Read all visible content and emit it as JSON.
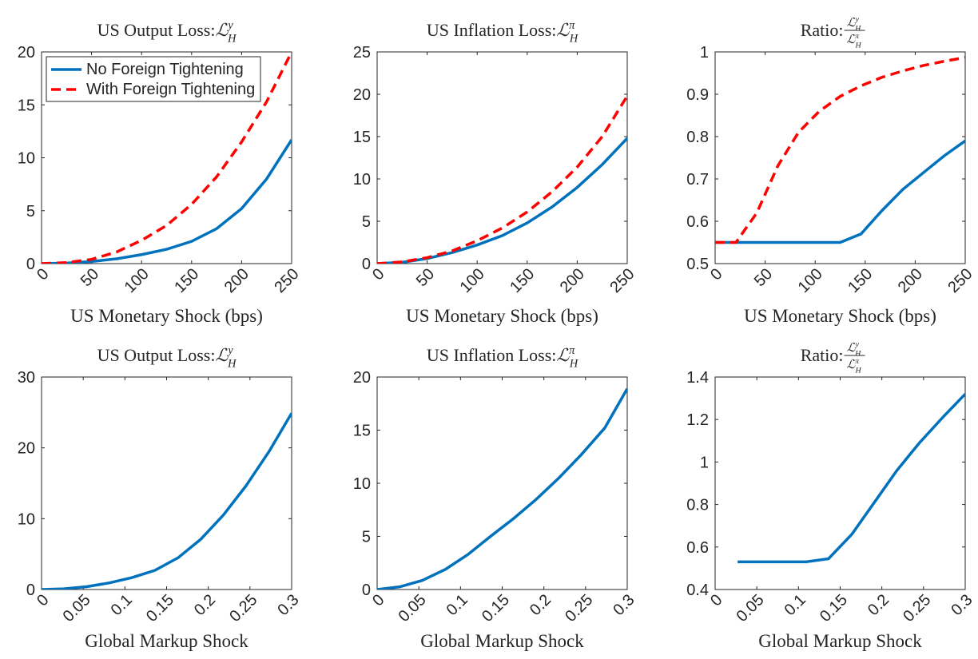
{
  "chart_data": [
    {
      "type": "line",
      "title": "US Output Loss:",
      "title_math": {
        "symbol": "ℒ",
        "sub": "H",
        "sup": "y"
      },
      "xlabel": "US Monetary Shock (bps)",
      "legend": "upper left",
      "x": [
        0,
        25,
        50,
        75,
        100,
        125,
        150,
        175,
        200,
        225,
        250
      ],
      "series": [
        {
          "name": "No Foreign Tightening",
          "color": "#0072bd",
          "dash": "solid",
          "values": [
            0,
            0.05,
            0.2,
            0.45,
            0.85,
            1.35,
            2.1,
            3.3,
            5.2,
            8,
            11.7
          ]
        },
        {
          "name": "With Foreign Tightening",
          "color": "#ff0000",
          "dash": "dashed",
          "values": [
            0,
            0.1,
            0.4,
            1.1,
            2.2,
            3.6,
            5.6,
            8.2,
            11.5,
            15.3,
            20
          ]
        }
      ],
      "xlim": [
        0,
        250
      ],
      "xticks": [
        0,
        50,
        100,
        150,
        200,
        250
      ],
      "ylim": [
        0,
        20
      ],
      "yticks": [
        0,
        5,
        10,
        15,
        20
      ]
    },
    {
      "type": "line",
      "title": "US Inflation Loss:",
      "title_math": {
        "symbol": "ℒ",
        "sub": "H",
        "sup": "π"
      },
      "xlabel": "US Monetary Shock (bps)",
      "x": [
        0,
        25,
        50,
        75,
        100,
        125,
        150,
        175,
        200,
        225,
        250
      ],
      "series": [
        {
          "color": "#0072bd",
          "dash": "solid",
          "values": [
            0,
            0.15,
            0.6,
            1.3,
            2.2,
            3.3,
            4.8,
            6.7,
            9,
            11.7,
            14.8
          ]
        },
        {
          "color": "#ff0000",
          "dash": "dashed",
          "values": [
            0,
            0.2,
            0.7,
            1.5,
            2.7,
            4.2,
            6.1,
            8.5,
            11.4,
            15,
            19.8
          ]
        }
      ],
      "xlim": [
        0,
        250
      ],
      "xticks": [
        0,
        50,
        100,
        150,
        200,
        250
      ],
      "ylim": [
        0,
        25
      ],
      "yticks": [
        0,
        5,
        10,
        15,
        20,
        25
      ]
    },
    {
      "type": "line",
      "title": "Ratio:",
      "title_fraction": {
        "numerator": {
          "symbol": "ℒ",
          "sub": "H",
          "sup": "y"
        },
        "denominator": {
          "symbol": "ℒ",
          "sub": "H",
          "sup": "π"
        }
      },
      "xlabel": "US Monetary Shock (bps)",
      "x": [
        0,
        20.8,
        41.7,
        62.5,
        83.3,
        104.2,
        125,
        145.8,
        166.7,
        187.5,
        208.3,
        229.2,
        250
      ],
      "series": [
        {
          "color": "#0072bd",
          "dash": "solid",
          "values": [
            0.55,
            0.55,
            0.55,
            0.55,
            0.55,
            0.55,
            0.55,
            0.57,
            0.625,
            0.675,
            0.715,
            0.755,
            0.79
          ]
        },
        {
          "color": "#ff0000",
          "dash": "dashed",
          "values": [
            0.55,
            0.55,
            0.62,
            0.73,
            0.81,
            0.86,
            0.895,
            0.92,
            0.94,
            0.955,
            0.968,
            0.978,
            0.987
          ]
        }
      ],
      "xlim": [
        0,
        250
      ],
      "xticks": [
        0,
        50,
        100,
        150,
        200,
        250
      ],
      "ylim": [
        0.5,
        1
      ],
      "yticks": [
        0.5,
        0.6,
        0.7,
        0.8,
        0.9,
        1
      ]
    },
    {
      "type": "line",
      "title": "US Output Loss:",
      "title_math": {
        "symbol": "ℒ",
        "sub": "H",
        "sup": "y"
      },
      "xlabel": "Global Markup Shock",
      "x": [
        0,
        0.027,
        0.054,
        0.082,
        0.109,
        0.136,
        0.164,
        0.191,
        0.218,
        0.245,
        0.273,
        0.3
      ],
      "series": [
        {
          "color": "#0072bd",
          "dash": "solid",
          "values": [
            0,
            0.1,
            0.4,
            0.95,
            1.7,
            2.7,
            4.5,
            7.1,
            10.5,
            14.6,
            19.5,
            24.9
          ]
        }
      ],
      "xlim": [
        0,
        0.3
      ],
      "xticks": [
        0,
        0.05,
        0.1,
        0.15,
        0.2,
        0.25,
        0.3
      ],
      "ylim": [
        0,
        30
      ],
      "yticks": [
        0,
        10,
        20,
        30
      ]
    },
    {
      "type": "line",
      "title": "US Inflation Loss:",
      "title_math": {
        "symbol": "ℒ",
        "sub": "H",
        "sup": "π"
      },
      "xlabel": "Global Markup Shock",
      "x": [
        0,
        0.027,
        0.054,
        0.082,
        0.109,
        0.136,
        0.164,
        0.191,
        0.218,
        0.245,
        0.273,
        0.3
      ],
      "series": [
        {
          "color": "#0072bd",
          "dash": "solid",
          "values": [
            0,
            0.25,
            0.85,
            1.9,
            3.3,
            5,
            6.7,
            8.5,
            10.5,
            12.7,
            15.2,
            18.9
          ]
        }
      ],
      "xlim": [
        0,
        0.3
      ],
      "xticks": [
        0,
        0.05,
        0.1,
        0.15,
        0.2,
        0.25,
        0.3
      ],
      "ylim": [
        0,
        20
      ],
      "yticks": [
        0,
        5,
        10,
        15,
        20
      ]
    },
    {
      "type": "line",
      "title": "Ratio:",
      "title_fraction": {
        "numerator": {
          "symbol": "ℒ",
          "sub": "H",
          "sup": "y"
        },
        "denominator": {
          "symbol": "ℒ",
          "sub": "H",
          "sup": "π"
        }
      },
      "xlabel": "Global Markup Shock",
      "x": [
        0,
        0.027,
        0.054,
        0.082,
        0.109,
        0.136,
        0.164,
        0.191,
        0.218,
        0.245,
        0.273,
        0.3
      ],
      "series": [
        {
          "color": "#0072bd",
          "dash": "solid",
          "values": [
            null,
            0.53,
            0.53,
            0.53,
            0.53,
            0.545,
            0.66,
            0.81,
            0.96,
            1.09,
            1.21,
            1.32
          ]
        }
      ],
      "xlim": [
        0,
        0.3
      ],
      "xticks": [
        0,
        0.05,
        0.1,
        0.15,
        0.2,
        0.25,
        0.3
      ],
      "ylim": [
        0.4,
        1.4
      ],
      "yticks": [
        0.4,
        0.6,
        0.8,
        1,
        1.2,
        1.4
      ]
    }
  ]
}
